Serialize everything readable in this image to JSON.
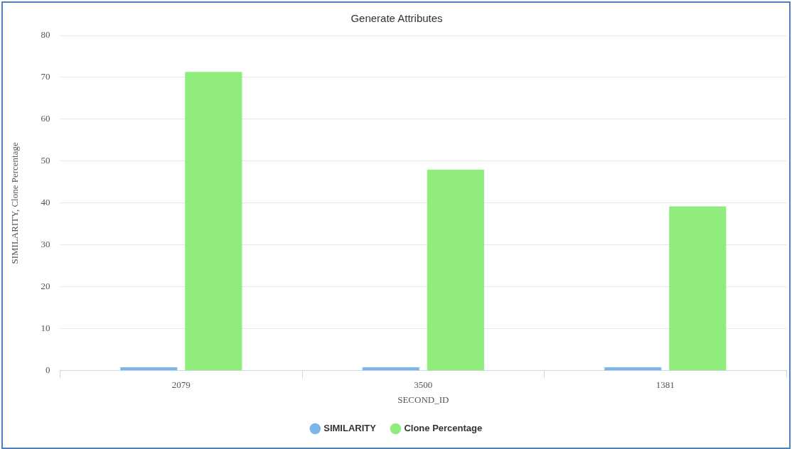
{
  "chart_data": {
    "type": "bar",
    "title": "Generate Attributes",
    "xlabel": "SECOND_ID",
    "ylabel": "SIMILARITY, Clone Percentage",
    "categories": [
      "2079",
      "3500",
      "1381"
    ],
    "series": [
      {
        "name": "SIMILARITY",
        "color": "#7cb5ec",
        "values": [
          0.8,
          0.8,
          0.8
        ]
      },
      {
        "name": "Clone Percentage",
        "color": "#90ed7d",
        "values": [
          71.3,
          48.0,
          39.2
        ]
      }
    ],
    "ylim": [
      0,
      80
    ],
    "yticks": [
      0,
      10,
      20,
      30,
      40,
      50,
      60,
      70,
      80
    ],
    "grid": "y",
    "legend": "bottom"
  }
}
